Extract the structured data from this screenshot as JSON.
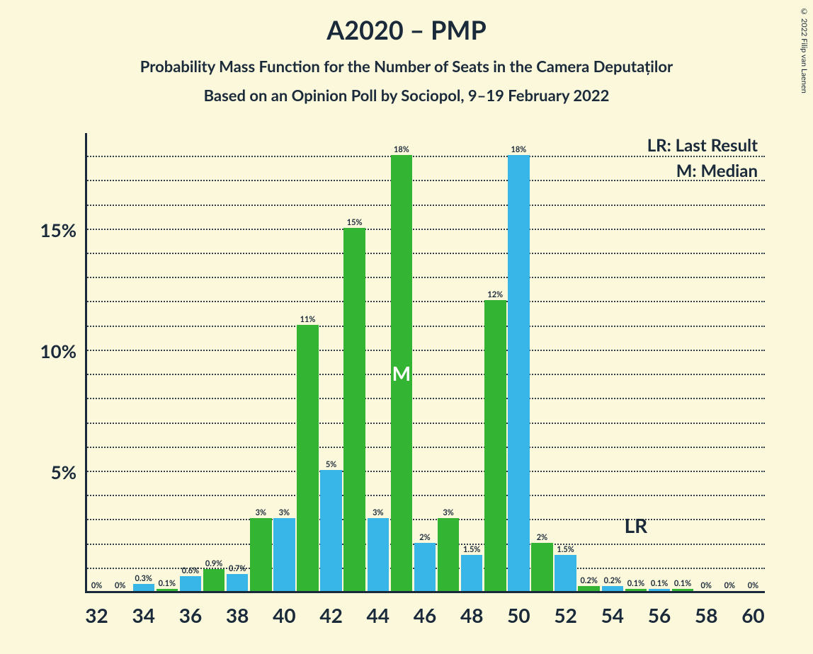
{
  "copyright": "© 2022 Filip van Laenen",
  "title": "A2020 – PMP",
  "subtitle1": "Probability Mass Function for the Number of Seats in the Camera Deputaților",
  "subtitle2": "Based on an Opinion Poll by Sociopol, 9–19 February 2022",
  "legend": {
    "lr": "LR: Last Result",
    "m": "M: Median"
  },
  "chart": {
    "type": "bar",
    "background_color": "#fbf8db",
    "grid_color": "#1a2a3a",
    "axis_color": "#1a2a3a",
    "text_color": "#1a2a3a",
    "median_text_color": "#ffffff",
    "ylim": [
      0,
      19
    ],
    "y_major_ticks": [
      5,
      10,
      15
    ],
    "y_minor_step": 1,
    "x_ticks": [
      32,
      34,
      36,
      38,
      40,
      42,
      44,
      46,
      48,
      50,
      52,
      54,
      56,
      58,
      60
    ],
    "x_min": 32,
    "x_max": 60,
    "x_step": 1,
    "median_x": 45,
    "median_label": "M",
    "lr_x": 55,
    "lr_label": "LR",
    "series": [
      {
        "name": "green",
        "color": "#33b433",
        "values": {
          "35": 0.1,
          "37": 0.9,
          "39": 3,
          "41": 11,
          "43": 15,
          "45": 18,
          "47": 3,
          "49": 12,
          "51": 2,
          "53": 0.2,
          "55": 0.1,
          "57": 0.1
        },
        "labels": {
          "35": "0.1%",
          "37": "0.9%",
          "39": "3%",
          "41": "11%",
          "43": "15%",
          "45": "18%",
          "47": "3%",
          "49": "12%",
          "51": "2%",
          "53": "0.2%",
          "55": "0.1%",
          "57": "0.1%"
        }
      },
      {
        "name": "blue",
        "color": "#38b6e8",
        "values": {
          "33": 0,
          "34": 0.3,
          "36": 0.6,
          "38": 0.7,
          "40": 3,
          "42": 5,
          "44": 3,
          "46": 2,
          "48": 1.5,
          "50": 18,
          "52": 1.5,
          "54": 0.2,
          "56": 0.1
        },
        "labels": {
          "33": "0%",
          "34": "0.3%",
          "36": "0.6%",
          "38": "0.7%",
          "40": "3%",
          "42": "5%",
          "44": "3%",
          "46": "2%",
          "48": "1.5%",
          "50": "18%",
          "52": "1.5%",
          "54": "0.2%",
          "56": "0.1%"
        }
      }
    ],
    "zero_only_labels": {
      "32": "0%",
      "55_b": "0%",
      "58": "0%",
      "59": "0%",
      "60": "0%"
    }
  }
}
